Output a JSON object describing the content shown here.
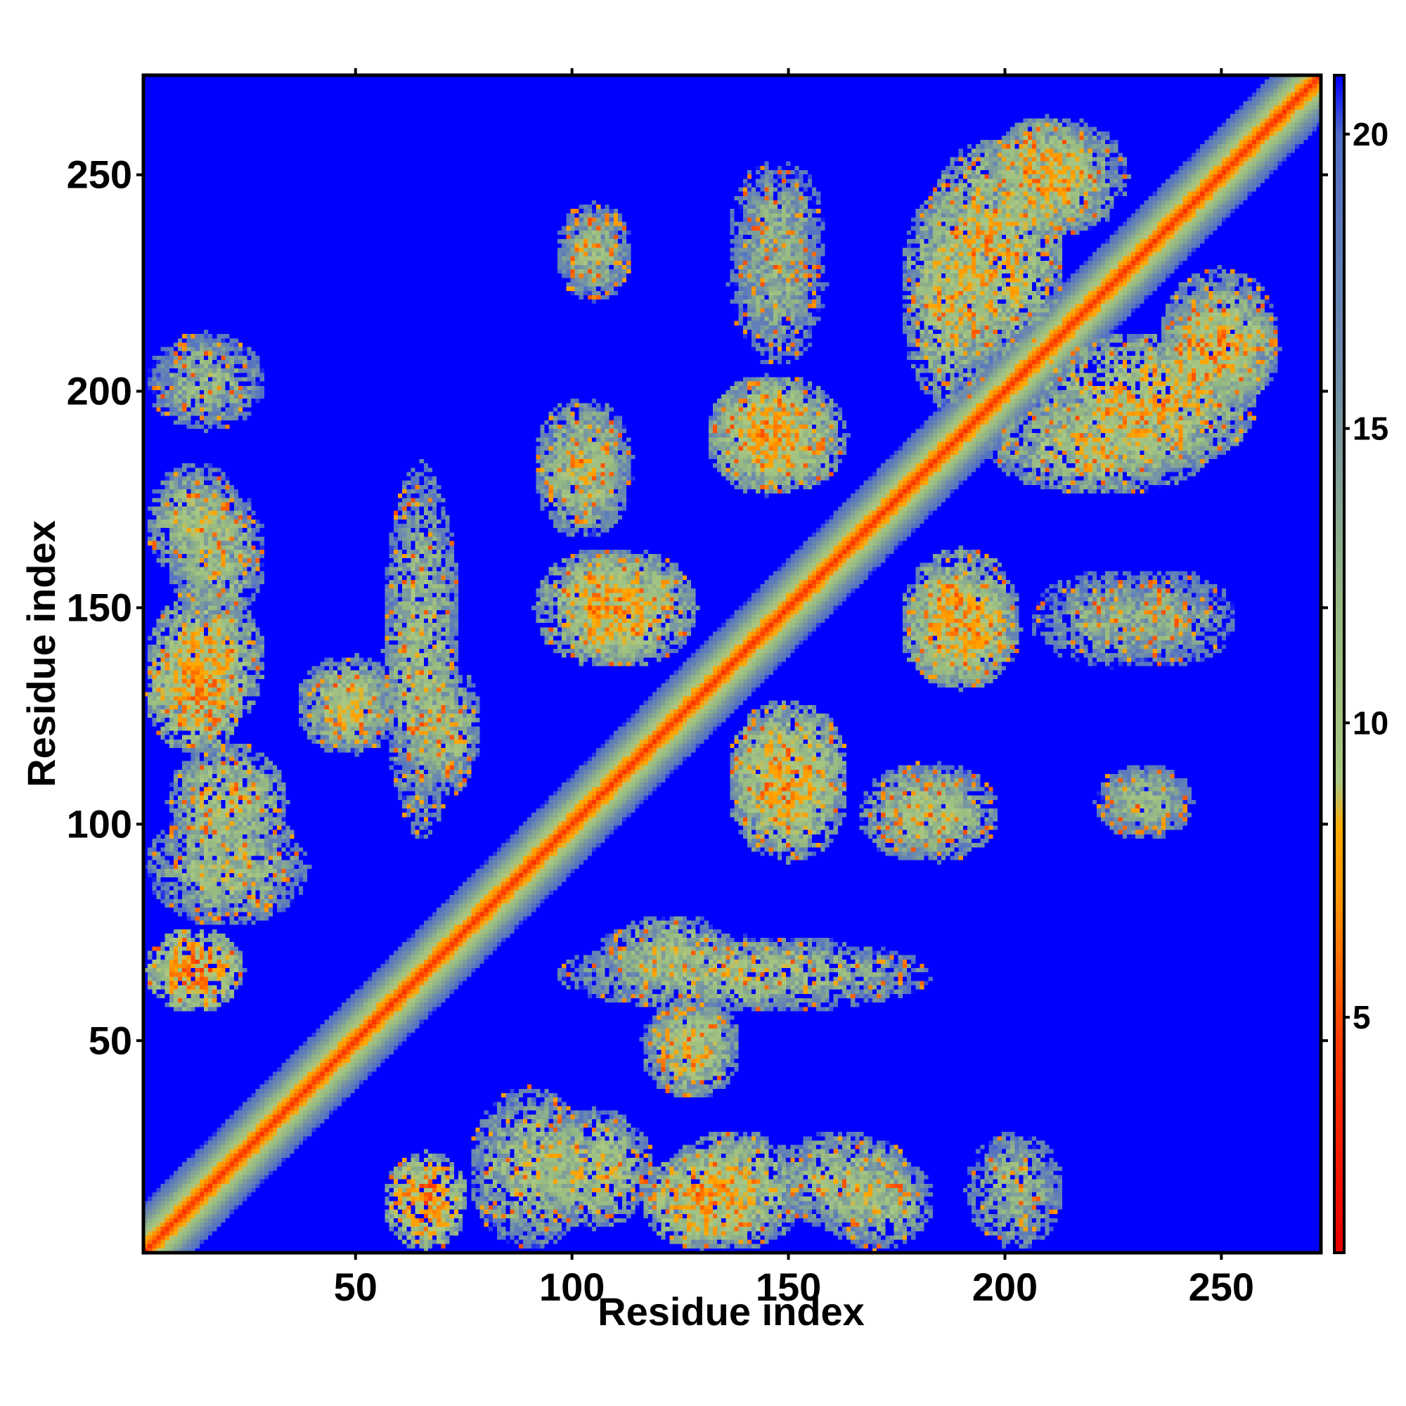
{
  "chart_data": {
    "type": "heatmap",
    "title": "",
    "xlabel": "Residue index",
    "ylabel": "Residue index",
    "n_residues": 273,
    "xlim": [
      1,
      273
    ],
    "ylim": [
      1,
      273
    ],
    "x_ticks": [
      50,
      100,
      150,
      200,
      250
    ],
    "y_ticks": [
      50,
      100,
      150,
      200,
      250
    ],
    "colorbar": {
      "range": [
        1,
        21
      ],
      "ticks": [
        5,
        10,
        15,
        20
      ],
      "colors": {
        "near": "#e60000",
        "close": "#ff5a00",
        "mid": "#ff9a00",
        "contact_edge": "#9fbf86",
        "far_edge": "#6f8fb0",
        "background": "#0000ff"
      }
    },
    "matrix_description_values": {
      "diagonal_distance": 3.8,
      "background_distance": 21
    },
    "contact_blocks": [
      {
        "x": [
          5,
          25
        ],
        "y": [
          195,
          210
        ],
        "value": 12
      },
      {
        "x": [
          5,
          20
        ],
        "y": [
          160,
          180
        ],
        "value": 11
      },
      {
        "x": [
          5,
          25
        ],
        "y": [
          125,
          150
        ],
        "value": 9
      },
      {
        "x": [
          5,
          35
        ],
        "y": [
          80,
          100
        ],
        "value": 11
      },
      {
        "x": [
          5,
          20
        ],
        "y": [
          60,
          72
        ],
        "value": 7
      },
      {
        "x": [
          40,
          55
        ],
        "y": [
          120,
          135
        ],
        "value": 10
      },
      {
        "x": [
          60,
          70
        ],
        "y": [
          100,
          180
        ],
        "value": 11
      },
      {
        "x": [
          95,
          115
        ],
        "y": [
          10,
          30
        ],
        "value": 10
      },
      {
        "x": [
          120,
          140
        ],
        "y": [
          5,
          20
        ],
        "value": 8
      },
      {
        "x": [
          150,
          175
        ],
        "y": [
          10,
          25
        ],
        "value": 11
      },
      {
        "x": [
          100,
          110
        ],
        "y": [
          225,
          240
        ],
        "value": 13
      },
      {
        "x": [
          140,
          155
        ],
        "y": [
          225,
          250
        ],
        "value": 13
      },
      {
        "x": [
          95,
          120
        ],
        "y": [
          140,
          160
        ],
        "value": 9
      },
      {
        "x": [
          95,
          110
        ],
        "y": [
          175,
          195
        ],
        "value": 11
      },
      {
        "x": [
          135,
          155
        ],
        "y": [
          180,
          200
        ],
        "value": 9
      },
      {
        "x": [
          140,
          160
        ],
        "y": [
          100,
          125
        ],
        "value": 9
      },
      {
        "x": [
          170,
          190
        ],
        "y": [
          95,
          110
        ],
        "value": 11
      },
      {
        "x": [
          180,
          200
        ],
        "y": [
          135,
          160
        ],
        "value": 9
      },
      {
        "x": [
          200,
          245
        ],
        "y": [
          180,
          195
        ],
        "value": 10
      },
      {
        "x": [
          185,
          210
        ],
        "y": [
          210,
          255
        ],
        "value": 9
      },
      {
        "x": [
          210,
          240
        ],
        "y": [
          140,
          155
        ],
        "value": 13
      },
      {
        "x": [
          225,
          240
        ],
        "y": [
          100,
          110
        ],
        "value": 12
      },
      {
        "x": [
          200,
          220
        ],
        "y": [
          240,
          260
        ],
        "value": 9
      },
      {
        "x": [
          240,
          260
        ],
        "y": [
          200,
          225
        ],
        "value": 11
      },
      {
        "x": [
          110,
          135
        ],
        "y": [
          65,
          75
        ],
        "value": 11
      },
      {
        "x": [
          120,
          135
        ],
        "y": [
          45,
          55
        ],
        "value": 11
      }
    ]
  }
}
